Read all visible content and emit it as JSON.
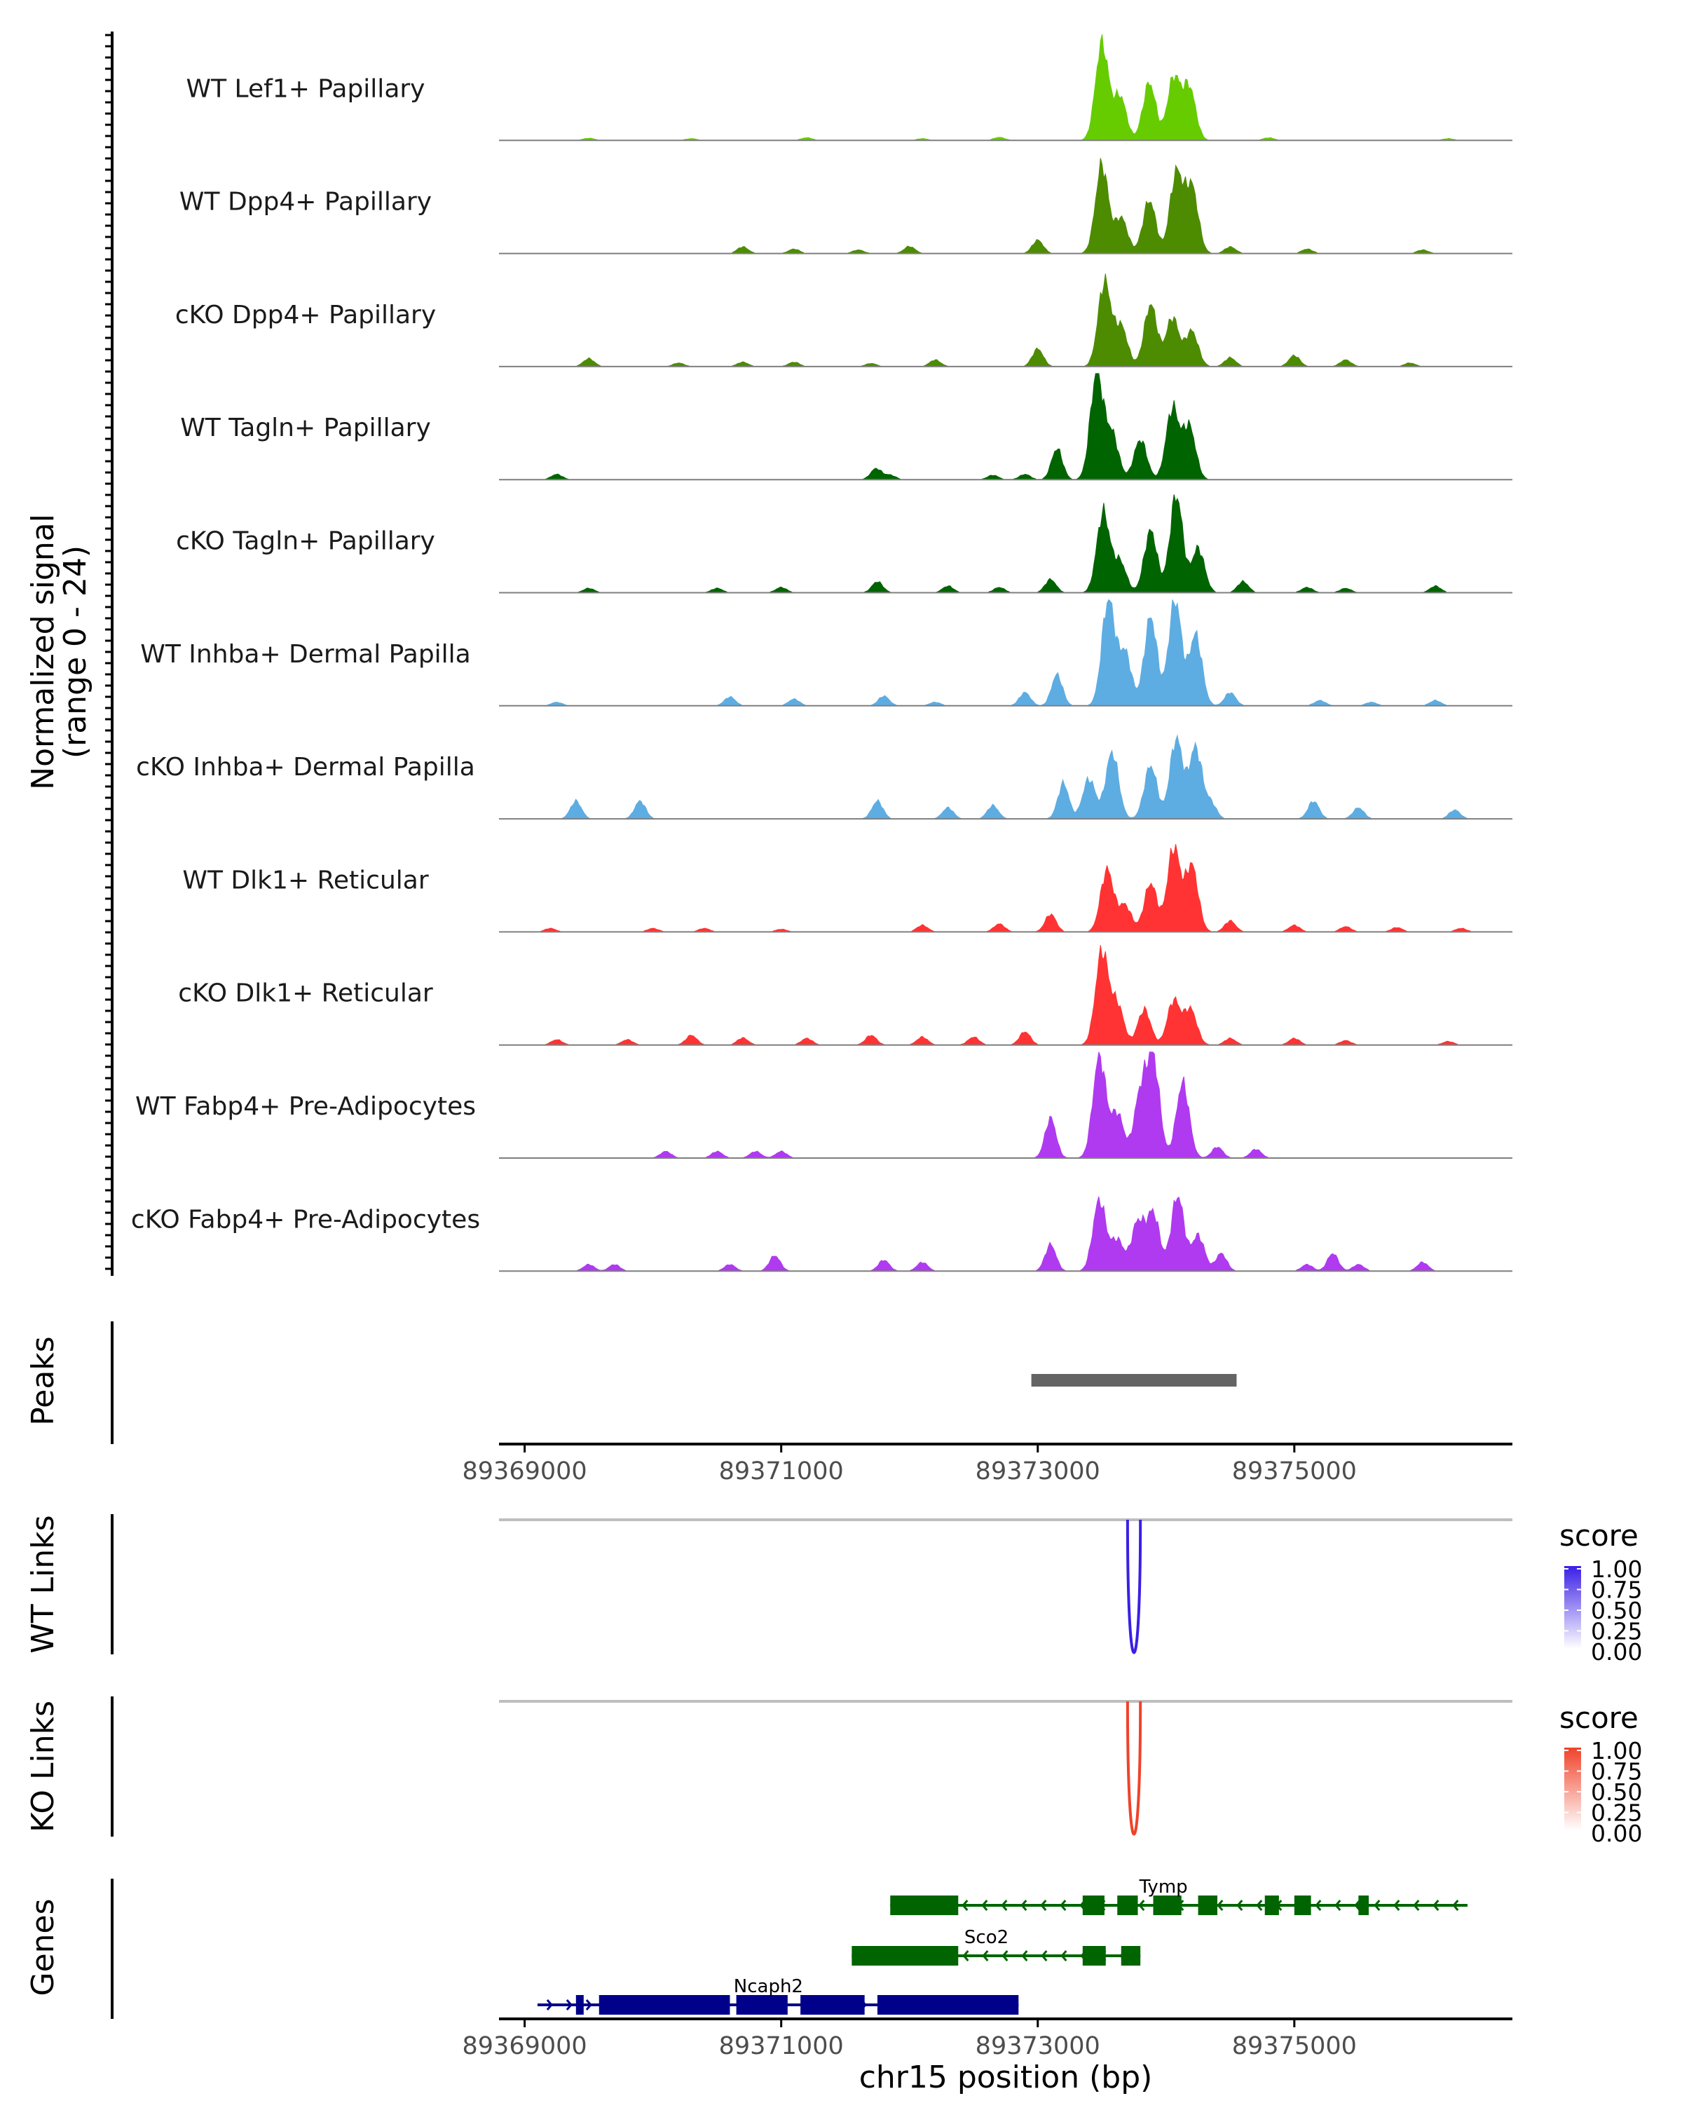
{
  "chart_data": {
    "type": "area",
    "ylabel": "Normalized signal",
    "ylabel_range": "(range 0 - 24)",
    "ylim": [
      0,
      24
    ],
    "xlabel": "chr15 position (bp)",
    "xlim": [
      89368800,
      89376700
    ],
    "xticks": [
      89369000,
      89371000,
      89373000,
      89375000
    ],
    "tracks": [
      {
        "name": "WT Lef1+ Papillary",
        "color": "#66CC00",
        "peaks": [
          [
            89373500,
            22
          ],
          [
            89373640,
            10
          ],
          [
            89373870,
            13
          ],
          [
            89374060,
            14
          ],
          [
            89374180,
            12
          ]
        ],
        "bumps": [
          [
            89369500,
            0.5
          ],
          [
            89370300,
            0.4
          ],
          [
            89371200,
            0.6
          ],
          [
            89372100,
            0.4
          ],
          [
            89372700,
            0.7
          ],
          [
            89374800,
            0.6
          ],
          [
            89376200,
            0.4
          ]
        ]
      },
      {
        "name": "WT Dpp4+ Papillary",
        "color": "#4D8C00",
        "peaks": [
          [
            89373500,
            20
          ],
          [
            89373650,
            8
          ],
          [
            89373870,
            12
          ],
          [
            89374080,
            18
          ],
          [
            89374200,
            15
          ]
        ],
        "bumps": [
          [
            89370700,
            1.5
          ],
          [
            89371100,
            1.0
          ],
          [
            89371600,
            0.8
          ],
          [
            89372000,
            1.6
          ],
          [
            89373000,
            3
          ],
          [
            89374500,
            1.5
          ],
          [
            89375100,
            1.0
          ],
          [
            89376000,
            0.8
          ]
        ]
      },
      {
        "name": "cKO Dpp4+ Papillary",
        "color": "#4D8C00",
        "peaks": [
          [
            89373520,
            19
          ],
          [
            89373650,
            9
          ],
          [
            89373880,
            14
          ],
          [
            89374050,
            11
          ],
          [
            89374200,
            8
          ]
        ],
        "bumps": [
          [
            89369500,
            1.8
          ],
          [
            89370200,
            0.8
          ],
          [
            89370700,
            1.0
          ],
          [
            89371100,
            1.0
          ],
          [
            89371700,
            0.7
          ],
          [
            89372200,
            1.5
          ],
          [
            89373000,
            4
          ],
          [
            89374500,
            2
          ],
          [
            89375000,
            2.5
          ],
          [
            89375400,
            1.5
          ],
          [
            89375900,
            0.8
          ]
        ]
      },
      {
        "name": "WT Tagln+ Papillary",
        "color": "#006400",
        "peaks": [
          [
            89373460,
            24
          ],
          [
            89373580,
            10
          ],
          [
            89373800,
            9
          ],
          [
            89374050,
            16
          ],
          [
            89374180,
            12
          ]
        ],
        "bumps": [
          [
            89369250,
            1.2
          ],
          [
            89371740,
            2.5
          ],
          [
            89371850,
            1.0
          ],
          [
            89372650,
            1.0
          ],
          [
            89372900,
            1.2
          ],
          [
            89373150,
            7
          ]
        ]
      },
      {
        "name": "cKO Tagln+ Papillary",
        "color": "#006400",
        "peaks": [
          [
            89373510,
            18
          ],
          [
            89373640,
            7
          ],
          [
            89373880,
            14
          ],
          [
            89374080,
            22
          ],
          [
            89374250,
            10
          ]
        ],
        "bumps": [
          [
            89369500,
            1.0
          ],
          [
            89370500,
            1.0
          ],
          [
            89371000,
            1.2
          ],
          [
            89371750,
            2.5
          ],
          [
            89372300,
            1.5
          ],
          [
            89372700,
            1.2
          ],
          [
            89373100,
            3
          ],
          [
            89374600,
            2.5
          ],
          [
            89375100,
            1.2
          ],
          [
            89375400,
            1.0
          ],
          [
            89376100,
            1.5
          ]
        ]
      },
      {
        "name": "WT Inhba+ Dermal Papilla",
        "color": "#5DADE2",
        "peaks": [
          [
            89373550,
            24
          ],
          [
            89373680,
            12
          ],
          [
            89373880,
            20
          ],
          [
            89374070,
            24
          ],
          [
            89374230,
            16
          ]
        ],
        "bumps": [
          [
            89369250,
            0.8
          ],
          [
            89370600,
            2
          ],
          [
            89371100,
            1.5
          ],
          [
            89371800,
            2.2
          ],
          [
            89372200,
            0.8
          ],
          [
            89372900,
            3
          ],
          [
            89373150,
            7
          ],
          [
            89374500,
            3
          ],
          [
            89375200,
            1.2
          ],
          [
            89375600,
            0.8
          ],
          [
            89376100,
            1.2
          ]
        ]
      },
      {
        "name": "cKO Inhba+ Dermal Papilla",
        "color": "#5DADE2",
        "peaks": [
          [
            89373400,
            9
          ],
          [
            89373580,
            15
          ],
          [
            89373880,
            12
          ],
          [
            89374080,
            18
          ],
          [
            89374230,
            16
          ]
        ],
        "bumps": [
          [
            89369400,
            4
          ],
          [
            89369900,
            4
          ],
          [
            89371750,
            4
          ],
          [
            89372300,
            2.5
          ],
          [
            89372650,
            3
          ],
          [
            89373200,
            8
          ],
          [
            89374350,
            3.5
          ],
          [
            89375150,
            4
          ],
          [
            89375500,
            2.5
          ],
          [
            89376250,
            2
          ]
        ]
      },
      {
        "name": "WT Dlk1+ Reticular",
        "color": "#FF3333",
        "peaks": [
          [
            89373540,
            14
          ],
          [
            89373680,
            6
          ],
          [
            89373880,
            11
          ],
          [
            89374060,
            19
          ],
          [
            89374200,
            15
          ]
        ],
        "bumps": [
          [
            89369200,
            0.8
          ],
          [
            89370000,
            0.8
          ],
          [
            89370400,
            0.8
          ],
          [
            89371000,
            0.6
          ],
          [
            89372100,
            1.5
          ],
          [
            89372700,
            1.8
          ],
          [
            89373100,
            4
          ],
          [
            89374500,
            2.5
          ],
          [
            89375000,
            1.5
          ],
          [
            89375400,
            1.2
          ],
          [
            89375800,
            1.0
          ],
          [
            89376300,
            0.8
          ]
        ]
      },
      {
        "name": "cKO Dlk1+ Reticular",
        "color": "#FF3333",
        "peaks": [
          [
            89373500,
            21
          ],
          [
            89373620,
            9
          ],
          [
            89373830,
            8
          ],
          [
            89374060,
            10
          ],
          [
            89374190,
            8
          ]
        ],
        "bumps": [
          [
            89369250,
            1.2
          ],
          [
            89369800,
            1.2
          ],
          [
            89370300,
            2.2
          ],
          [
            89370700,
            1.6
          ],
          [
            89371200,
            1.5
          ],
          [
            89371700,
            2.2
          ],
          [
            89372100,
            1.8
          ],
          [
            89372500,
            1.8
          ],
          [
            89372900,
            3
          ],
          [
            89374500,
            1.5
          ],
          [
            89375000,
            1.5
          ],
          [
            89375400,
            1.0
          ],
          [
            89376200,
            0.8
          ]
        ]
      },
      {
        "name": "WT Fabp4+ Pre-Adipocytes",
        "color": "#B03AF0",
        "peaks": [
          [
            89373480,
            23
          ],
          [
            89373620,
            10
          ],
          [
            89373800,
            14
          ],
          [
            89373900,
            22
          ],
          [
            89374130,
            17
          ]
        ],
        "bumps": [
          [
            89370100,
            1.5
          ],
          [
            89370500,
            1.5
          ],
          [
            89370800,
            1.5
          ],
          [
            89371000,
            1.5
          ],
          [
            89373100,
            9
          ],
          [
            89374400,
            2.5
          ],
          [
            89374700,
            2
          ]
        ]
      },
      {
        "name": "cKO Fabp4+ Pre-Adipocytes",
        "color": "#B03AF0",
        "peaks": [
          [
            89373480,
            16
          ],
          [
            89373620,
            7
          ],
          [
            89373780,
            11
          ],
          [
            89373900,
            13
          ],
          [
            89374090,
            17
          ],
          [
            89374250,
            8
          ]
        ],
        "bumps": [
          [
            89369500,
            1.5
          ],
          [
            89369700,
            1.5
          ],
          [
            89370600,
            1.5
          ],
          [
            89370950,
            3.5
          ],
          [
            89371800,
            2.5
          ],
          [
            89372100,
            2
          ],
          [
            89373100,
            6
          ],
          [
            89374430,
            4
          ],
          [
            89375100,
            1.5
          ],
          [
            89375300,
            4
          ],
          [
            89375500,
            1.5
          ],
          [
            89376000,
            2
          ]
        ]
      }
    ],
    "peaks_track": {
      "label": "Peaks",
      "intervals": [
        [
          89372950,
          89374550
        ]
      ],
      "color": "#646464"
    },
    "links": [
      {
        "label": "WT Links",
        "start": 89373700,
        "end": 89373800,
        "score": 1.0,
        "color": "#3A1FE6",
        "legend_title": "score",
        "legend_ticks": [
          "1.00",
          "0.75",
          "0.50",
          "0.25",
          "0.00"
        ]
      },
      {
        "label": "KO Links",
        "start": 89373700,
        "end": 89373800,
        "score": 1.0,
        "color": "#F0422A",
        "legend_title": "score",
        "legend_ticks": [
          "1.00",
          "0.75",
          "0.50",
          "0.25",
          "0.00"
        ]
      }
    ],
    "genes_label": "Genes",
    "genes": [
      {
        "name": "Tymp",
        "strand": "-",
        "color": "#006400",
        "start": 89371850,
        "end": 89376350,
        "exons": [
          [
            89371850,
            89372380
          ],
          [
            89373350,
            89373520
          ],
          [
            89373620,
            89373780
          ],
          [
            89373900,
            89374120
          ],
          [
            89374250,
            89374400
          ],
          [
            89374770,
            89374880
          ],
          [
            89375000,
            89375130
          ],
          [
            89375500,
            89375580
          ]
        ],
        "label_pos": 89373980
      },
      {
        "name": "Sco2",
        "strand": "-",
        "color": "#006400",
        "start": 89371550,
        "end": 89373800,
        "exons": [
          [
            89371550,
            89372380
          ],
          [
            89373350,
            89373530
          ],
          [
            89373650,
            89373800
          ]
        ],
        "label_pos": 89372600
      },
      {
        "name": "Ncaph2",
        "strand": "+",
        "color": "#00008B",
        "start": 89369100,
        "end": 89372850,
        "exons": [
          [
            89369400,
            89369460
          ],
          [
            89369580,
            89370600
          ],
          [
            89370650,
            89371050
          ],
          [
            89371150,
            89371650
          ],
          [
            89371750,
            89372850
          ]
        ],
        "label_pos": 89370900
      }
    ]
  }
}
